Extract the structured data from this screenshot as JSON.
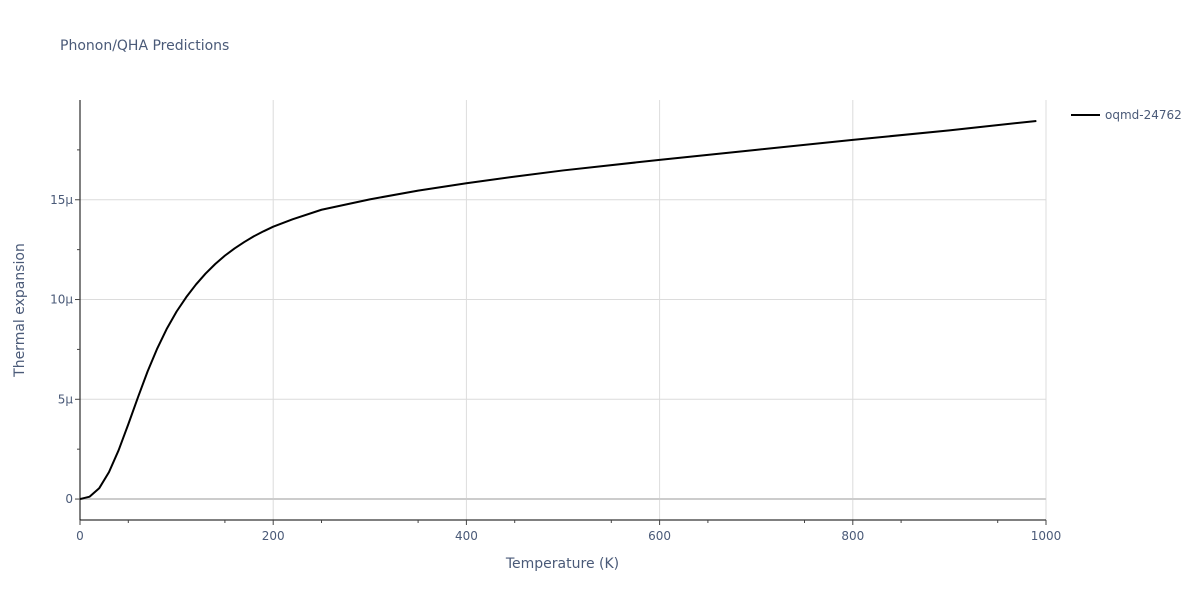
{
  "chart_data": {
    "type": "line",
    "title": "Phonon/QHA Predictions",
    "xlabel": "Temperature (K)",
    "ylabel": "Thermal expansion",
    "xlim": [
      0,
      1000
    ],
    "ylim": [
      -1.05e-06,
      2e-05
    ],
    "x_ticks": [
      0,
      200,
      400,
      600,
      800,
      1000
    ],
    "x_tick_labels": [
      "0",
      "200",
      "400",
      "600",
      "800",
      "1000"
    ],
    "y_ticks": [
      0,
      5e-06,
      1e-05,
      1.5e-05
    ],
    "y_tick_labels": [
      "0",
      "5μ",
      "10μ",
      "15μ"
    ],
    "grid": true,
    "legend_position": "top-right",
    "series": [
      {
        "name": "oqmd-24762",
        "color": "#000000",
        "x": [
          0,
          10,
          20,
          30,
          40,
          50,
          60,
          70,
          80,
          90,
          100,
          110,
          120,
          130,
          140,
          150,
          160,
          170,
          180,
          190,
          200,
          220,
          250,
          300,
          350,
          400,
          450,
          500,
          600,
          700,
          800,
          900,
          990
        ],
        "y": [
          0,
          1.2e-07,
          5.5e-07,
          1.35e-06,
          2.45e-06,
          3.75e-06,
          5.1e-06,
          6.4e-06,
          7.55e-06,
          8.55e-06,
          9.4e-06,
          1.012e-05,
          1.075e-05,
          1.13e-05,
          1.178e-05,
          1.22e-05,
          1.256e-05,
          1.288e-05,
          1.317e-05,
          1.342e-05,
          1.365e-05,
          1.402e-05,
          1.45e-05,
          1.502e-05,
          1.546e-05,
          1.583e-05,
          1.616e-05,
          1.647e-05,
          1.7e-05,
          1.75e-05,
          1.8e-05,
          1.848e-05,
          1.895e-05
        ]
      }
    ]
  }
}
